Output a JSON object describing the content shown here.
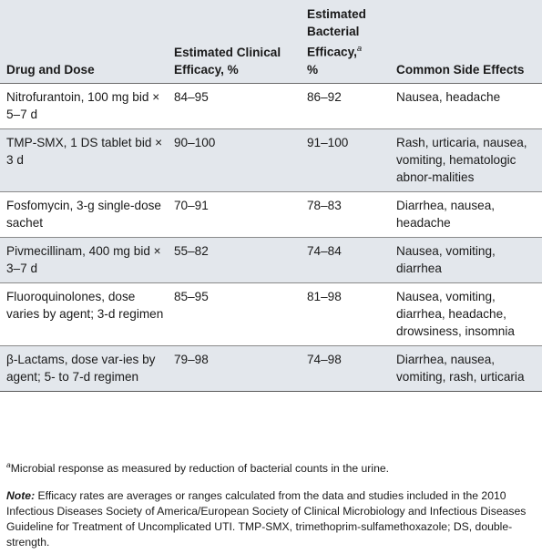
{
  "table": {
    "headers": {
      "drug": "Drug and Dose",
      "clinical": "Estimated Clinical Efficacy, %",
      "bacterial": "Estimated Bacterial Efficacy,",
      "bacterial_sup": "a",
      "bacterial_unit": "%",
      "side_effects": "Common Side Effects"
    },
    "rows": [
      {
        "drug": "Nitrofurantoin, 100 mg bid × 5–7 d",
        "clinical": "84–95",
        "bacterial": "86–92",
        "side_effects": "Nausea, headache"
      },
      {
        "drug": "TMP-SMX, 1 DS tablet bid × 3 d",
        "clinical": "90–100",
        "bacterial": "91–100",
        "side_effects": "Rash, urticaria, nausea, vomiting, hematologic abnor-malities"
      },
      {
        "drug": "Fosfomycin, 3-g single-dose sachet",
        "clinical": "70–91",
        "bacterial": "78–83",
        "side_effects": "Diarrhea, nausea, headache"
      },
      {
        "drug": "Pivmecillinam, 400 mg bid × 3–7 d",
        "clinical": "55–82",
        "bacterial": "74–84",
        "side_effects": "Nausea, vomiting, diarrhea"
      },
      {
        "drug": "Fluoroquinolones, dose varies by agent; 3-d regimen",
        "clinical": "85–95",
        "bacterial": "81–98",
        "side_effects": "Nausea, vomiting, diarrhea, headache, drowsiness, insomnia"
      },
      {
        "drug": "β-Lactams, dose var-ies by agent; 5- to 7-d regimen",
        "clinical": "79–98",
        "bacterial": "74–98",
        "side_effects": "Diarrhea, nausea, vomiting, rash, urticaria"
      }
    ]
  },
  "footnotes": {
    "a_marker": "a",
    "a_text": "Microbial response as measured by reduction of bacterial counts in the urine.",
    "note_label": "Note:",
    "note_text": "Efficacy rates are averages or ranges calculated from the data and studies included in the 2010 Infectious Diseases Society of America/European Society of Clinical Microbiology and Infectious Diseases Guideline for Treatment of Uncomplicated UTI. TMP-SMX, trimethoprim-sulfamethoxazole; DS, double-strength."
  }
}
